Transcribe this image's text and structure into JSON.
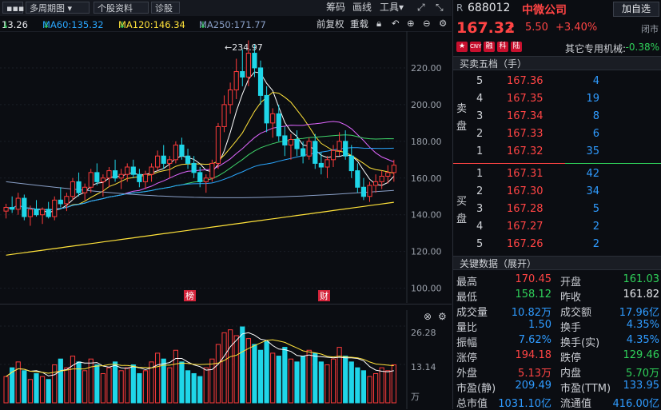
{
  "toolbar": {
    "menu_icon": "menu-dots-icon",
    "period_button": "多周期图",
    "stock_info_button": "个股资料",
    "diagnose_button": "诊股",
    "chip_label": "筹码",
    "draw_label": "画线",
    "tools_label": "工具",
    "expand_icon": "expand-icon",
    "shrink_icon": "shrink-icon"
  },
  "ma_row": {
    "ma_first": "13.26",
    "ma60": "MA60:135.32",
    "ma120": "MA120:146.34",
    "ma250": "MA250:171.77",
    "adjust_label": "前复权",
    "reset_label": "重载",
    "colors": {
      "ma_first": "#ffffff",
      "ma60": "#2aa7ff",
      "ma120": "#ffe23a",
      "ma250": "#8aa0c8"
    }
  },
  "main_chart": {
    "y_ticks": [
      "220.00",
      "200.00",
      "180.00",
      "160.00",
      "140.00",
      "120.00",
      "100.00"
    ],
    "high_annotation": "←234.97",
    "marker_1": "榜",
    "marker_2": "财"
  },
  "volume_chart": {
    "y_ticks": [
      "26.28",
      "13.14",
      "万"
    ]
  },
  "chart_data": {
    "type": "candlestick",
    "y_range": [
      92,
      240
    ],
    "candles": [
      [
        142,
        146,
        138,
        144
      ],
      [
        144,
        150,
        141,
        143
      ],
      [
        143,
        152,
        140,
        149
      ],
      [
        149,
        151,
        137,
        139
      ],
      [
        139,
        145,
        134,
        143
      ],
      [
        143,
        148,
        139,
        140
      ],
      [
        140,
        144,
        135,
        143
      ],
      [
        143,
        147,
        138,
        139
      ],
      [
        139,
        150,
        137,
        148
      ],
      [
        148,
        155,
        144,
        146
      ],
      [
        146,
        152,
        142,
        150
      ],
      [
        150,
        160,
        148,
        158
      ],
      [
        158,
        163,
        150,
        152
      ],
      [
        152,
        157,
        148,
        155
      ],
      [
        155,
        165,
        152,
        163
      ],
      [
        163,
        168,
        156,
        158
      ],
      [
        158,
        162,
        150,
        160
      ],
      [
        160,
        166,
        155,
        164
      ],
      [
        164,
        170,
        158,
        160
      ],
      [
        160,
        165,
        154,
        162
      ],
      [
        162,
        168,
        158,
        166
      ],
      [
        166,
        170,
        160,
        162
      ],
      [
        162,
        165,
        155,
        158
      ],
      [
        158,
        164,
        154,
        162
      ],
      [
        162,
        168,
        158,
        166
      ],
      [
        166,
        175,
        164,
        172
      ],
      [
        172,
        178,
        165,
        168
      ],
      [
        168,
        172,
        160,
        170
      ],
      [
        170,
        180,
        168,
        178
      ],
      [
        178,
        182,
        170,
        172
      ],
      [
        172,
        176,
        165,
        168
      ],
      [
        168,
        172,
        160,
        163
      ],
      [
        163,
        166,
        155,
        158
      ],
      [
        158,
        162,
        152,
        160
      ],
      [
        160,
        170,
        158,
        168
      ],
      [
        168,
        190,
        165,
        188
      ],
      [
        188,
        205,
        185,
        200
      ],
      [
        200,
        212,
        195,
        208
      ],
      [
        208,
        225,
        203,
        218
      ],
      [
        218,
        230,
        210,
        215
      ],
      [
        215,
        235,
        210,
        228
      ],
      [
        228,
        233,
        215,
        220
      ],
      [
        220,
        224,
        200,
        205
      ],
      [
        205,
        210,
        185,
        190
      ],
      [
        190,
        198,
        182,
        195
      ],
      [
        195,
        200,
        180,
        183
      ],
      [
        183,
        188,
        172,
        178
      ],
      [
        178,
        184,
        170,
        181
      ],
      [
        181,
        186,
        172,
        176
      ],
      [
        176,
        180,
        168,
        172
      ],
      [
        172,
        182,
        170,
        180
      ],
      [
        180,
        184,
        165,
        168
      ],
      [
        168,
        174,
        162,
        166
      ],
      [
        166,
        172,
        160,
        170
      ],
      [
        170,
        178,
        166,
        175
      ],
      [
        175,
        185,
        172,
        180
      ],
      [
        180,
        186,
        170,
        172
      ],
      [
        172,
        178,
        160,
        164
      ],
      [
        164,
        168,
        152,
        155
      ],
      [
        155,
        160,
        148,
        150
      ],
      [
        150,
        158,
        147,
        156
      ],
      [
        156,
        162,
        152,
        158
      ],
      [
        158,
        164,
        154,
        161
      ],
      [
        161,
        167,
        157,
        163
      ],
      [
        163,
        170,
        158,
        167
      ]
    ],
    "volume_max": 26.28,
    "volumes": [
      9,
      12,
      14,
      11,
      8,
      10,
      9,
      8,
      13,
      15,
      12,
      16,
      14,
      11,
      15,
      13,
      10,
      12,
      14,
      11,
      12,
      13,
      10,
      11,
      14,
      17,
      15,
      12,
      18,
      14,
      11,
      10,
      9,
      12,
      15,
      20,
      24,
      25,
      23,
      26,
      22,
      20,
      18,
      21,
      17,
      16,
      19,
      15,
      14,
      16,
      18,
      17,
      14,
      13,
      15,
      19,
      16,
      14,
      12,
      11,
      9,
      10,
      12,
      11,
      13
    ]
  },
  "header": {
    "market_letter": "R",
    "code": "688012",
    "name": "中微公司",
    "add_button": "加自选",
    "price": "167.32",
    "arrow_icon": "up-arrow-icon",
    "change": "5.50",
    "change_pct": "+3.40%",
    "status": "闭市",
    "flags": [
      "CNY",
      "融",
      "科",
      "陆"
    ],
    "inst_label": "其它专用机械:",
    "inst_value": "-0.38%"
  },
  "orderbook": {
    "title": "买卖五档（手）",
    "sell_label": "卖盘",
    "buy_label": "买盘",
    "asks": [
      {
        "n": "5",
        "price": "167.36",
        "vol": "4"
      },
      {
        "n": "4",
        "price": "167.35",
        "vol": "19"
      },
      {
        "n": "3",
        "price": "167.34",
        "vol": "8"
      },
      {
        "n": "2",
        "price": "167.33",
        "vol": "6"
      },
      {
        "n": "1",
        "price": "167.32",
        "vol": "35"
      }
    ],
    "bids": [
      {
        "n": "1",
        "price": "167.31",
        "vol": "42"
      },
      {
        "n": "2",
        "price": "167.30",
        "vol": "34"
      },
      {
        "n": "3",
        "price": "167.28",
        "vol": "5"
      },
      {
        "n": "4",
        "price": "167.27",
        "vol": "2"
      },
      {
        "n": "5",
        "price": "167.26",
        "vol": "2"
      }
    ]
  },
  "keydata": {
    "title": "关键数据（展开）",
    "rows": [
      {
        "l": "最高",
        "v": "170.45",
        "vc": "red",
        "l2": "开盘",
        "v2": "161.03",
        "v2c": "green"
      },
      {
        "l": "最低",
        "v": "158.12",
        "vc": "green",
        "l2": "昨收",
        "v2": "161.82",
        "v2c": "white"
      },
      {
        "l": "成交量",
        "v": "10.82万",
        "vc": "blue",
        "l2": "成交额",
        "v2": "17.96亿",
        "v2c": "blue"
      },
      {
        "l": "量比",
        "v": "1.50",
        "vc": "blue",
        "l2": "换手",
        "v2": "4.35%",
        "v2c": "blue"
      },
      {
        "l": "振幅",
        "v": "7.62%",
        "vc": "blue",
        "l2": "换手(实)",
        "v2": "4.35%",
        "v2c": "blue"
      },
      {
        "l": "涨停",
        "v": "194.18",
        "vc": "red",
        "l2": "跌停",
        "v2": "129.46",
        "v2c": "green"
      },
      {
        "l": "外盘",
        "v": "5.13万",
        "vc": "red",
        "l2": "内盘",
        "v2": "5.70万",
        "v2c": "green"
      },
      {
        "l": "市盈(静)",
        "v": "209.49",
        "vc": "blue",
        "l2": "市盈(TTM)",
        "v2": "133.95",
        "v2c": "blue"
      },
      {
        "l": "总市值",
        "v": "1031.10亿",
        "vc": "blue",
        "l2": "流通值",
        "v2": "416.00亿",
        "v2c": "blue"
      }
    ]
  }
}
